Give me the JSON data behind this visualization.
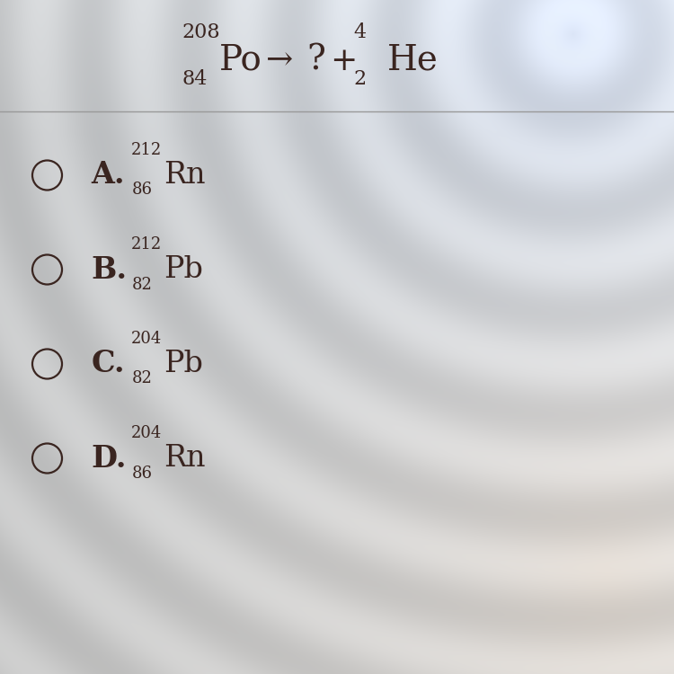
{
  "background_base": "#d8d8d5",
  "text_color": "#3a2520",
  "line_color": "#999999",
  "options": [
    {
      "label": "A.",
      "mass": "212",
      "atomic": "86",
      "symbol": "Rn"
    },
    {
      "label": "B.",
      "mass": "212",
      "atomic": "82",
      "symbol": "Pb"
    },
    {
      "label": "C.",
      "mass": "204",
      "atomic": "82",
      "symbol": "Pb"
    },
    {
      "label": "D.",
      "mass": "204",
      "atomic": "86",
      "symbol": "Rn"
    }
  ],
  "title_mass": "208",
  "title_atomic": "84",
  "title_symbol": "Po",
  "alpha_mass": "4",
  "alpha_atomic": "2",
  "alpha_symbol": "He",
  "figsize": [
    7.5,
    7.5
  ],
  "dpi": 100
}
